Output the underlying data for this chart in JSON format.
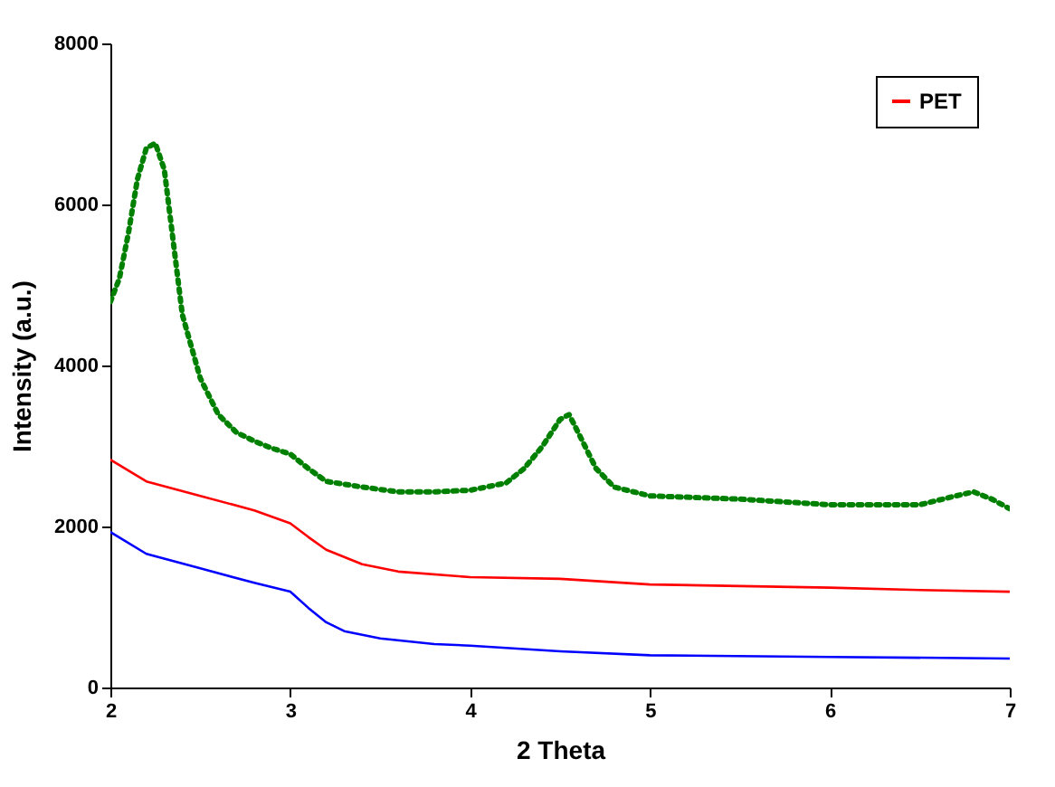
{
  "chart_data": {
    "type": "line",
    "xlabel": "2 Theta",
    "ylabel": "Intensity (a.u.)",
    "xlim": [
      2,
      7
    ],
    "ylim": [
      0,
      8000
    ],
    "xticks": [
      2,
      3,
      4,
      5,
      6,
      7
    ],
    "yticks": [
      0,
      2000,
      4000,
      6000,
      8000
    ],
    "grid": false,
    "legend": "top right",
    "marker": "none",
    "series": [
      {
        "color": "#0000ff",
        "line_style": "solid",
        "x": [
          2.0,
          2.2,
          2.5,
          2.8,
          3.0,
          3.1,
          3.2,
          3.3,
          3.5,
          3.8,
          4.0,
          4.5,
          5.0,
          6.0,
          7.0
        ],
        "values": [
          1930,
          1660,
          1480,
          1300,
          1190,
          990,
          810,
          700,
          610,
          540,
          520,
          450,
          400,
          380,
          360
        ]
      },
      {
        "name": "PET",
        "color": "#ff0000",
        "line_style": "solid",
        "x": [
          2.0,
          2.2,
          2.5,
          2.8,
          3.0,
          3.1,
          3.2,
          3.4,
          3.6,
          4.0,
          4.5,
          5.0,
          5.5,
          6.0,
          6.5,
          7.0
        ],
        "values": [
          2830,
          2560,
          2380,
          2200,
          2040,
          1870,
          1710,
          1530,
          1440,
          1370,
          1350,
          1280,
          1260,
          1240,
          1210,
          1190
        ]
      },
      {
        "color": "#008000",
        "line_style": "dotted",
        "x": [
          2.0,
          2.05,
          2.1,
          2.15,
          2.2,
          2.25,
          2.3,
          2.35,
          2.4,
          2.5,
          2.6,
          2.7,
          2.8,
          2.9,
          3.0,
          3.1,
          3.2,
          3.4,
          3.6,
          3.8,
          4.0,
          4.2,
          4.3,
          4.4,
          4.5,
          4.55,
          4.6,
          4.7,
          4.8,
          5.0,
          5.5,
          6.0,
          6.5,
          6.7,
          6.8,
          6.9,
          7.0
        ],
        "values": [
          4790,
          5080,
          5640,
          6310,
          6700,
          6760,
          6430,
          5530,
          4630,
          3840,
          3390,
          3170,
          3060,
          2970,
          2900,
          2720,
          2560,
          2490,
          2430,
          2430,
          2450,
          2540,
          2720,
          2990,
          3330,
          3390,
          3170,
          2720,
          2490,
          2380,
          2340,
          2270,
          2270,
          2380,
          2430,
          2340,
          2220
        ]
      }
    ]
  }
}
